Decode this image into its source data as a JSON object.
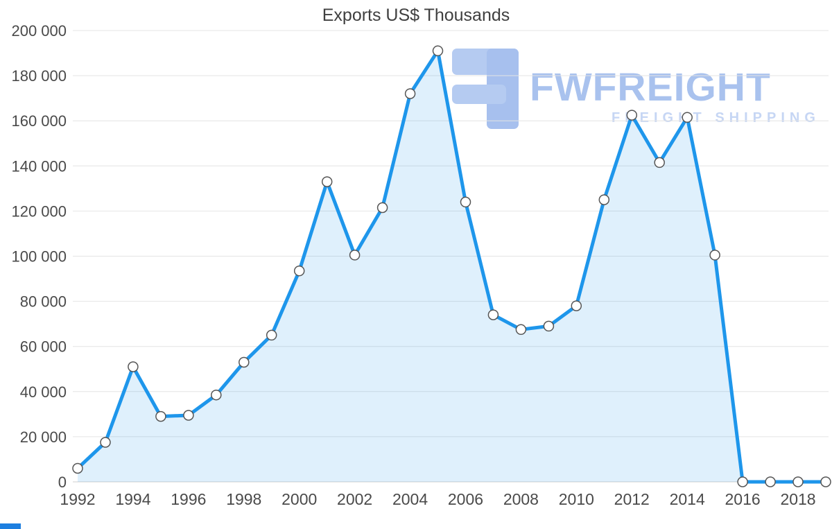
{
  "title": "Exports US$ Thousands",
  "watermark": {
    "brand": "FWFREIGHT",
    "tagline": "FREIGHT SHIPPING",
    "brand_color": "#a9c2ee",
    "tagline_color": "#c6d6f4",
    "icon_color": "#b5cbf1",
    "icon_color_dark": "#a7c0ee"
  },
  "page": {
    "background_color": "#ffffff",
    "bottom_strip_color": "#1d7fe0"
  },
  "chart_data": {
    "type": "area",
    "title": "Exports US$ Thousands",
    "xlabel": "",
    "ylabel": "",
    "x": [
      1992,
      1993,
      1994,
      1995,
      1996,
      1997,
      1998,
      1999,
      2000,
      2001,
      2002,
      2003,
      2004,
      2005,
      2006,
      2007,
      2008,
      2009,
      2010,
      2011,
      2012,
      2013,
      2014,
      2015,
      2016,
      2017,
      2018,
      2019
    ],
    "values": [
      6000,
      17500,
      51000,
      29000,
      29500,
      38500,
      53000,
      65000,
      93500,
      133000,
      100500,
      121500,
      172000,
      191000,
      124000,
      74000,
      67500,
      69000,
      78000,
      125000,
      162500,
      141500,
      161500,
      100500,
      0,
      0,
      0,
      0
    ],
    "ylim": [
      0,
      200000
    ],
    "y_ticks": [
      0,
      20000,
      40000,
      60000,
      80000,
      100000,
      120000,
      140000,
      160000,
      180000,
      200000
    ],
    "y_tick_labels": [
      "0",
      "20 000",
      "40 000",
      "60 000",
      "80 000",
      "100 000",
      "120 000",
      "140 000",
      "160 000",
      "180 000",
      "200 000"
    ],
    "x_ticks": [
      1992,
      1994,
      1996,
      1998,
      2000,
      2002,
      2004,
      2006,
      2008,
      2010,
      2012,
      2014,
      2016,
      2018
    ],
    "x_tick_labels": [
      "1992",
      "1994",
      "1996",
      "1998",
      "2000",
      "2002",
      "2004",
      "2006",
      "2008",
      "2010",
      "2012",
      "2014",
      "2016",
      "2018"
    ],
    "grid": true,
    "legend": false,
    "line_color": "#1e96eb",
    "fill_color": "rgba(30,150,235,0.14)",
    "marker_fill": "#ffffff",
    "marker_stroke": "#555555",
    "grid_color": "#e4e4e4",
    "axis_text_color": "#4a4a4a"
  }
}
